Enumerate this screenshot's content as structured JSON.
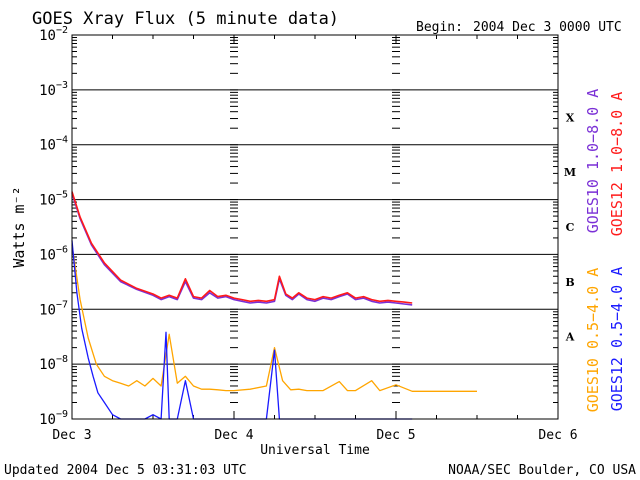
{
  "header": {
    "title": "GOES Xray Flux (5 minute data)",
    "begin_label": "Begin:",
    "begin_value": "2004 Dec 3 0000 UTC"
  },
  "footer": {
    "updated": "Updated 2004 Dec  5 03:31:03 UTC",
    "credit": "NOAA/SEC Boulder, CO USA"
  },
  "chart_data": {
    "type": "line",
    "title": "GOES Xray Flux (5 minute data)",
    "xlabel": "Universal Time",
    "ylabel": "Watts m⁻²",
    "x_scale": "time",
    "y_scale": "log",
    "ylim": [
      1e-09,
      0.01
    ],
    "xlim": [
      "Dec 3",
      "Dec 6"
    ],
    "x_ticks": [
      "Dec 3",
      "Dec 4",
      "Dec 5",
      "Dec 6"
    ],
    "y_tick_exponents": [
      -2,
      -3,
      -4,
      -5,
      -6,
      -7,
      -8,
      -9
    ],
    "grid": true,
    "flare_classes": [
      "X",
      "M",
      "C",
      "B",
      "A"
    ],
    "legend_placement": "right, vertical",
    "series": [
      {
        "name": "GOES10 1.0−8.0 A",
        "color": "#7a2fd6",
        "x_days": [
          0.0,
          0.05,
          0.12,
          0.2,
          0.3,
          0.4,
          0.5,
          0.55,
          0.6,
          0.65,
          0.7,
          0.75,
          0.8,
          0.85,
          0.9,
          0.95,
          1.0,
          1.05,
          1.1,
          1.15,
          1.2,
          1.25,
          1.28,
          1.32,
          1.36,
          1.4,
          1.45,
          1.5,
          1.55,
          1.6,
          1.65,
          1.7,
          1.75,
          1.8,
          1.85,
          1.9,
          1.95,
          2.0,
          2.05,
          2.1
        ],
        "y": [
          1.3e-05,
          4.5e-06,
          1.5e-06,
          6.5e-07,
          3.2e-07,
          2.3e-07,
          1.8e-07,
          1.5e-07,
          1.7e-07,
          1.5e-07,
          3.2e-07,
          1.6e-07,
          1.5e-07,
          2e-07,
          1.6e-07,
          1.7e-07,
          1.5e-07,
          1.4e-07,
          1.3e-07,
          1.35e-07,
          1.3e-07,
          1.4e-07,
          3.6e-07,
          1.8e-07,
          1.5e-07,
          1.9e-07,
          1.5e-07,
          1.4e-07,
          1.6e-07,
          1.5e-07,
          1.7e-07,
          1.9e-07,
          1.5e-07,
          1.6e-07,
          1.4e-07,
          1.3e-07,
          1.35e-07,
          1.3e-07,
          1.25e-07,
          1.2e-07
        ]
      },
      {
        "name": "GOES12 1.0−8.0 A",
        "color": "#ff1a1a",
        "x_days": [
          0.0,
          0.05,
          0.12,
          0.2,
          0.3,
          0.4,
          0.5,
          0.55,
          0.6,
          0.65,
          0.7,
          0.75,
          0.8,
          0.85,
          0.9,
          0.95,
          1.0,
          1.05,
          1.1,
          1.15,
          1.2,
          1.25,
          1.28,
          1.32,
          1.36,
          1.4,
          1.45,
          1.5,
          1.55,
          1.6,
          1.65,
          1.7,
          1.75,
          1.8,
          1.85,
          1.9,
          1.95,
          2.0,
          2.05,
          2.1
        ],
        "y": [
          1.4e-05,
          4.8e-06,
          1.6e-06,
          7e-07,
          3.4e-07,
          2.4e-07,
          1.9e-07,
          1.6e-07,
          1.8e-07,
          1.6e-07,
          3.6e-07,
          1.7e-07,
          1.6e-07,
          2.2e-07,
          1.7e-07,
          1.8e-07,
          1.6e-07,
          1.5e-07,
          1.4e-07,
          1.45e-07,
          1.4e-07,
          1.5e-07,
          4e-07,
          1.9e-07,
          1.6e-07,
          2e-07,
          1.6e-07,
          1.5e-07,
          1.7e-07,
          1.6e-07,
          1.8e-07,
          2e-07,
          1.6e-07,
          1.7e-07,
          1.5e-07,
          1.4e-07,
          1.45e-07,
          1.4e-07,
          1.35e-07,
          1.3e-07
        ]
      },
      {
        "name": "GOES10 0.5−4.0 A",
        "color": "#ffa500",
        "x_days": [
          0.0,
          0.05,
          0.1,
          0.15,
          0.2,
          0.25,
          0.3,
          0.35,
          0.4,
          0.45,
          0.5,
          0.55,
          0.6,
          0.65,
          0.7,
          0.75,
          0.8,
          0.85,
          0.9,
          0.95,
          1.0,
          1.1,
          1.2,
          1.25,
          1.3,
          1.35,
          1.4,
          1.45,
          1.55,
          1.65,
          1.7,
          1.75,
          1.85,
          1.9,
          2.0,
          2.1,
          2.2,
          2.4,
          2.5
        ],
        "y": [
          1.5e-06,
          1.5e-07,
          3e-08,
          1e-08,
          6e-09,
          5e-09,
          4.5e-09,
          4e-09,
          5e-09,
          4e-09,
          5.5e-09,
          4e-09,
          3.5e-08,
          4.5e-09,
          6e-09,
          4e-09,
          3.5e-09,
          3.5e-09,
          3.4e-09,
          3.3e-09,
          3.3e-09,
          3.5e-09,
          4e-09,
          2e-08,
          5e-09,
          3.4e-09,
          3.5e-09,
          3.3e-09,
          3.3e-09,
          4.8e-09,
          3.3e-09,
          3.3e-09,
          5e-09,
          3.3e-09,
          4.2e-09,
          3.2e-09,
          3.2e-09,
          3.2e-09,
          3.2e-09
        ]
      },
      {
        "name": "GOES12 0.5−4.0 A",
        "color": "#1a1aff",
        "x_days": [
          0.0,
          0.03,
          0.06,
          0.1,
          0.13,
          0.16,
          0.2,
          0.25,
          0.3,
          0.35,
          0.4,
          0.45,
          0.5,
          0.55,
          0.58,
          0.6,
          0.62,
          0.65,
          0.7,
          0.75,
          0.8,
          0.85,
          0.9,
          1.0,
          1.1,
          1.2,
          1.25,
          1.28,
          1.32,
          1.4,
          1.5,
          1.6,
          1.7,
          1.8,
          1.9,
          2.0,
          2.1
        ],
        "y": [
          1.8e-06,
          2e-07,
          4.5e-08,
          1.3e-08,
          6e-09,
          3e-09,
          2e-09,
          1.2e-09,
          1e-09,
          1e-09,
          1e-09,
          1e-09,
          1.2e-09,
          1e-09,
          3.8e-08,
          1e-09,
          1e-09,
          1e-09,
          5e-09,
          1e-09,
          1e-09,
          1e-09,
          1e-09,
          1e-09,
          1e-09,
          1e-09,
          1.8e-08,
          1e-09,
          1e-09,
          1e-09,
          1e-09,
          1e-09,
          1e-09,
          1e-09,
          1e-09,
          1e-09,
          1e-09
        ]
      }
    ]
  }
}
